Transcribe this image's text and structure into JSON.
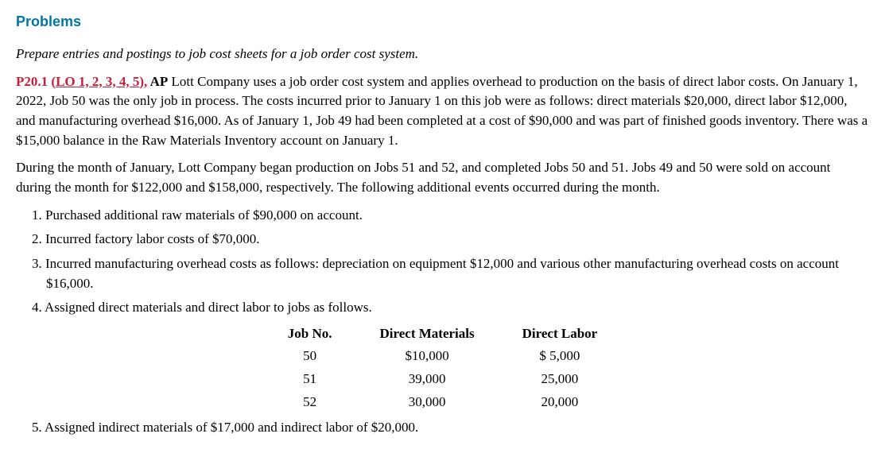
{
  "heading": "Problems",
  "instruction": "Prepare entries and postings to job cost sheets for a job order cost system.",
  "problem_ref": "P20.1 ",
  "lo_prefix": "(",
  "lo_text": "LO 1, 2, 3, 4, 5",
  "lo_suffix": "), ",
  "ap_label": "AP",
  "para1_rest": " Lott Company uses a job order cost system and applies overhead to production on the basis of direct labor costs. On January 1, 2022, Job 50 was the only job in process. The costs incurred prior to January 1 on this job were as follows: direct materials $20,000, direct labor $12,000, and manufacturing overhead $16,000. As of January 1, Job 49 had been completed at a cost of $90,000 and was part of finished goods inventory. There was a $15,000 balance in the Raw Materials Inventory account on January 1.",
  "para2": "During the month of January, Lott Company began production on Jobs 51 and 52, and completed Jobs 50 and 51. Jobs 49 and 50 were sold on account during the month for $122,000 and $158,000, respectively. The following additional events occurred during the month.",
  "items": {
    "i1": "1. Purchased additional raw materials of $90,000 on account.",
    "i2": "2. Incurred factory labor costs of $70,000.",
    "i3": "3. Incurred manufacturing overhead costs as follows: depreciation on equipment $12,000 and various other manufacturing overhead costs on account $16,000.",
    "i4": "4. Assigned direct materials and direct labor to jobs as follows.",
    "i5": "5. Assigned indirect materials of $17,000 and indirect labor of $20,000."
  },
  "table": {
    "headers": {
      "c1": "Job No.",
      "c2": "Direct Materials",
      "c3": "Direct Labor"
    },
    "rows": [
      {
        "c1": "50",
        "c2": "$10,000",
        "c3": "$ 5,000"
      },
      {
        "c1": "51",
        "c2": "39,000",
        "c3": "25,000"
      },
      {
        "c1": "52",
        "c2": "30,000",
        "c3": "20,000"
      }
    ]
  }
}
